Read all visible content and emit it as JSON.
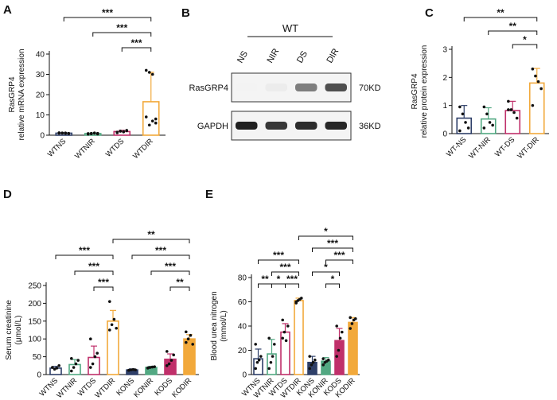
{
  "panels": {
    "A": "A",
    "B": "B",
    "C": "C",
    "D": "D",
    "E": "E"
  },
  "colors": {
    "ns": "#2e3f68",
    "nir": "#52a882",
    "ds": "#c0306a",
    "dir": "#f2a93b",
    "ko_ns": "#2e3f68",
    "ko_nir": "#52a882",
    "ko_ds": "#c0306a",
    "ko_dir": "#f2a93b",
    "axis": "#111111",
    "sig": "#111111"
  },
  "blot": {
    "group_label": "WT",
    "lanes": [
      "NS",
      "NIR",
      "DS",
      "DIR"
    ],
    "rows": [
      {
        "name": "RasGRP4",
        "size": "70KD",
        "intensity": [
          0.05,
          0.08,
          0.55,
          0.75
        ]
      },
      {
        "name": "GAPDH",
        "size": "36KD",
        "intensity": [
          0.95,
          0.85,
          0.9,
          0.92
        ]
      }
    ]
  },
  "chart_data": [
    {
      "panel": "A",
      "type": "bar",
      "ylabel": "RasGRP4\nrelative mRNA expression",
      "ylim": [
        0,
        40
      ],
      "yticks": [
        0,
        10,
        20,
        30,
        40
      ],
      "categories": [
        "WTNS",
        "WTNIR",
        "WTDS",
        "WTDIR"
      ],
      "values": [
        1.0,
        0.8,
        1.8,
        16.5
      ],
      "errors": [
        0.2,
        0.3,
        0.6,
        14.5
      ],
      "points": [
        [
          1,
          1.1,
          0.9,
          0.8,
          1.2,
          1.0,
          1.1,
          0.9
        ],
        [
          0.5,
          0.9,
          1.1,
          0.6,
          0.8,
          0.7,
          1.0,
          0.9
        ],
        [
          1.5,
          2.0,
          1.8,
          2.4,
          1.2,
          2.0,
          1.6,
          2.2
        ],
        [
          32,
          31,
          30,
          8,
          9,
          5,
          7,
          6
        ]
      ],
      "colors": [
        "#2e3f68",
        "#52a882",
        "#c0306a",
        "#f2a93b"
      ],
      "significance": [
        {
          "from": 0,
          "to": 3,
          "label": "***"
        },
        {
          "from": 1,
          "to": 3,
          "label": "***"
        },
        {
          "from": 2,
          "to": 3,
          "label": "***"
        }
      ]
    },
    {
      "panel": "C",
      "type": "bar",
      "ylabel": "RasGRP4\nrelative protein expression",
      "ylim": [
        0,
        3
      ],
      "yticks": [
        0,
        1,
        2,
        3
      ],
      "categories": [
        "WT-NS",
        "WT-NIR",
        "WT-DS",
        "WT-DIR"
      ],
      "values": [
        0.55,
        0.52,
        0.82,
        1.8
      ],
      "errors": [
        0.45,
        0.4,
        0.33,
        0.52
      ],
      "points": [
        [
          0.95,
          0.7,
          0.4,
          0.2,
          0.1
        ],
        [
          0.95,
          0.7,
          0.4,
          0.3,
          0.2
        ],
        [
          1.15,
          0.85,
          0.75,
          0.55,
          0.85
        ],
        [
          2.3,
          2.05,
          1.85,
          1.6,
          1.0
        ]
      ],
      "colors": [
        "#2e3f68",
        "#52a882",
        "#c0306a",
        "#f2a93b"
      ],
      "significance": [
        {
          "from": 0,
          "to": 3,
          "label": "**"
        },
        {
          "from": 1,
          "to": 3,
          "label": "**"
        },
        {
          "from": 2,
          "to": 3,
          "label": "*"
        }
      ]
    },
    {
      "panel": "D",
      "type": "bar",
      "ylabel": "Serum creatinine\n(μmol/L)",
      "ylim": [
        0,
        250
      ],
      "yticks": [
        0,
        50,
        100,
        150,
        200,
        250
      ],
      "categories": [
        "WTNS",
        "WTNIR",
        "WTDS",
        "WTDIR",
        "KONS",
        "KONIR",
        "KODS",
        "KODIR"
      ],
      "values": [
        18,
        28,
        48,
        150,
        13,
        20,
        43,
        100
      ],
      "errors": [
        5,
        14,
        32,
        30,
        3,
        3,
        15,
        12
      ],
      "points": [
        [
          20,
          15,
          18,
          25
        ],
        [
          10,
          20,
          30,
          40,
          45
        ],
        [
          20,
          30,
          50,
          60,
          100
        ],
        [
          205,
          140,
          155,
          130,
          125
        ],
        [
          12,
          13,
          14,
          13,
          12
        ],
        [
          18,
          20,
          21,
          22,
          19
        ],
        [
          25,
          30,
          40,
          55,
          65
        ],
        [
          120,
          100,
          110,
          85,
          90
        ]
      ],
      "colors": [
        "#2e3f68",
        "#52a882",
        "#c0306a",
        "#f2a93b",
        "#2e3f68",
        "#52a882",
        "#c0306a",
        "#f2a93b"
      ],
      "filled": [
        false,
        false,
        false,
        false,
        true,
        true,
        true,
        true
      ],
      "significance": [
        {
          "from": 0,
          "to": 3,
          "label": "***"
        },
        {
          "from": 1,
          "to": 3,
          "label": "***"
        },
        {
          "from": 2,
          "to": 3,
          "label": "***"
        },
        {
          "from": 3,
          "to": 7,
          "label": "**"
        },
        {
          "from": 4,
          "to": 7,
          "label": "***"
        },
        {
          "from": 5,
          "to": 7,
          "label": "***"
        },
        {
          "from": 6,
          "to": 7,
          "label": "**"
        }
      ]
    },
    {
      "panel": "E",
      "type": "bar",
      "ylabel": "Blood urea nitrogen\n(mmol/L)",
      "ylim": [
        0,
        80
      ],
      "yticks": [
        0,
        20,
        40,
        60,
        80
      ],
      "categories": [
        "WTNS",
        "WTNIR",
        "WTDS",
        "WTDIR",
        "KONS",
        "KONIR",
        "KODS",
        "KODIR"
      ],
      "values": [
        13,
        17,
        35,
        61,
        10,
        11,
        28,
        43
      ],
      "errors": [
        8,
        12,
        7,
        2,
        5,
        3,
        10,
        4
      ],
      "points": [
        [
          5,
          10,
          12,
          15,
          25
        ],
        [
          5,
          10,
          15,
          25,
          30
        ],
        [
          30,
          35,
          28,
          40,
          45
        ],
        [
          59,
          61,
          62,
          63,
          60
        ],
        [
          5,
          8,
          10,
          12,
          15
        ],
        [
          8,
          10,
          11,
          12,
          13
        ],
        [
          15,
          20,
          30,
          35,
          40
        ],
        [
          38,
          42,
          45,
          46,
          47
        ]
      ],
      "colors": [
        "#2e3f68",
        "#52a882",
        "#c0306a",
        "#f2a93b",
        "#2e3f68",
        "#52a882",
        "#c0306a",
        "#f2a93b"
      ],
      "filled": [
        false,
        false,
        false,
        false,
        true,
        true,
        true,
        true
      ],
      "significance": [
        {
          "from": 0,
          "to": 1,
          "label": "**"
        },
        {
          "from": 1,
          "to": 2,
          "label": "*"
        },
        {
          "from": 2,
          "to": 3,
          "label": "***"
        },
        {
          "from": 1,
          "to": 3,
          "label": "***"
        },
        {
          "from": 0,
          "to": 3,
          "label": "***"
        },
        {
          "from": 3,
          "to": 7,
          "label": "*"
        },
        {
          "from": 4,
          "to": 7,
          "label": "***"
        },
        {
          "from": 4,
          "to": 6,
          "label": "*"
        },
        {
          "from": 5,
          "to": 7,
          "label": "***"
        },
        {
          "from": 5,
          "to": 6,
          "label": "*"
        }
      ]
    }
  ]
}
